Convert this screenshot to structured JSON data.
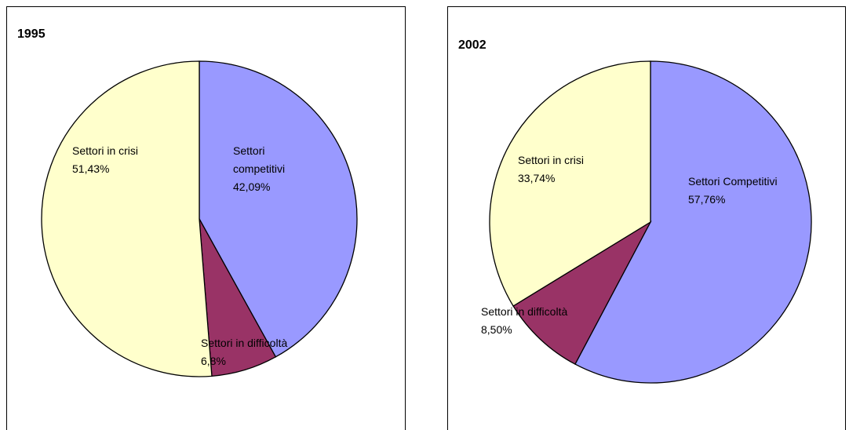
{
  "chart_data": [
    {
      "type": "pie",
      "title": "1995",
      "categories": [
        "Settori competitivi",
        "Settori in difficoltà",
        "Settori in crisi"
      ],
      "values": [
        42.09,
        6.8,
        51.43
      ],
      "value_labels": [
        "42,09%",
        "6,8%",
        "51,43%"
      ],
      "colors": [
        "#9999ff",
        "#993366",
        "#ffffcc"
      ]
    },
    {
      "type": "pie",
      "title": "2002",
      "categories": [
        "Settori Competitivi",
        "Settori in difficoltà",
        "Settori in crisi"
      ],
      "values": [
        57.76,
        8.5,
        33.74
      ],
      "value_labels": [
        "57,76%",
        "8,50%",
        "33,74%"
      ],
      "colors": [
        "#9999ff",
        "#993366",
        "#ffffcc"
      ]
    }
  ]
}
